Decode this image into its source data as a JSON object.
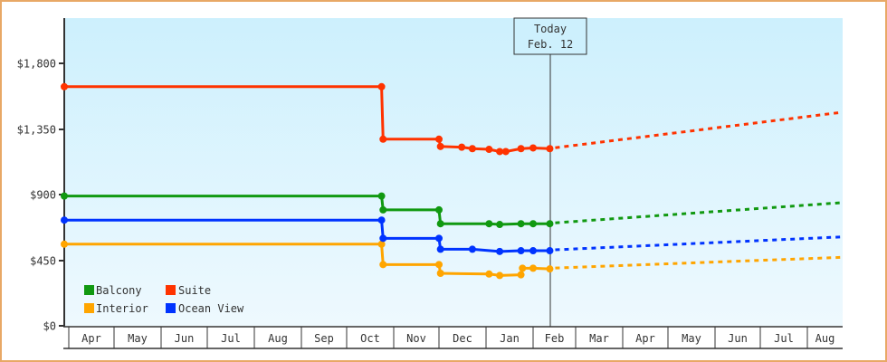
{
  "chart_data": {
    "type": "line",
    "title": "",
    "xlabel": "",
    "ylabel": "",
    "ylim": [
      0,
      2100
    ],
    "y_ticks": [
      {
        "value": 0,
        "label": "$0"
      },
      {
        "value": 450,
        "label": "$450"
      },
      {
        "value": 900,
        "label": "$900"
      },
      {
        "value": 1350,
        "label": "$1,350"
      },
      {
        "value": 1800,
        "label": "$1,800"
      }
    ],
    "x_ticks": [
      "Apr",
      "May",
      "Jun",
      "Jul",
      "Aug",
      "Sep",
      "Oct",
      "Nov",
      "Dec",
      "Jan",
      "Feb",
      "Mar",
      "Apr",
      "May",
      "Jun",
      "Jul",
      "Aug"
    ],
    "grid": false,
    "legend_position": "bottom-left inside plot",
    "today_marker": {
      "line1": "Today",
      "line2": "Feb. 12"
    },
    "series": [
      {
        "name": "Balcony",
        "color": "#119911",
        "historical": [
          {
            "date": "Apr 1",
            "price": 890
          },
          {
            "date": "Oct 24",
            "price": 890
          },
          {
            "date": "Oct 25",
            "price": 795
          },
          {
            "date": "Dec 1",
            "price": 795
          },
          {
            "date": "Dec 2",
            "price": 700
          },
          {
            "date": "Jan 3",
            "price": 700
          },
          {
            "date": "Jan 10",
            "price": 695
          },
          {
            "date": "Jan 24",
            "price": 700
          },
          {
            "date": "Feb 1",
            "price": 700
          },
          {
            "date": "Feb 12",
            "price": 700
          }
        ],
        "forecast": [
          {
            "date": "Feb 12",
            "price": 700
          },
          {
            "date": "Aug 31",
            "price": 845
          }
        ]
      },
      {
        "name": "Suite",
        "color": "#ff3300",
        "historical": [
          {
            "date": "Apr 1",
            "price": 1640
          },
          {
            "date": "Oct 24",
            "price": 1640
          },
          {
            "date": "Oct 25",
            "price": 1280
          },
          {
            "date": "Dec 1",
            "price": 1280
          },
          {
            "date": "Dec 2",
            "price": 1230
          },
          {
            "date": "Dec 16",
            "price": 1225
          },
          {
            "date": "Dec 23",
            "price": 1215
          },
          {
            "date": "Jan 3",
            "price": 1210
          },
          {
            "date": "Jan 10",
            "price": 1195
          },
          {
            "date": "Jan 14",
            "price": 1195
          },
          {
            "date": "Jan 24",
            "price": 1215
          },
          {
            "date": "Feb 1",
            "price": 1220
          },
          {
            "date": "Feb 12",
            "price": 1215
          }
        ],
        "forecast": [
          {
            "date": "Feb 12",
            "price": 1215
          },
          {
            "date": "Aug 31",
            "price": 1465
          }
        ]
      },
      {
        "name": "Interior",
        "color": "#ffa500",
        "historical": [
          {
            "date": "Apr 1",
            "price": 560
          },
          {
            "date": "Oct 24",
            "price": 560
          },
          {
            "date": "Oct 25",
            "price": 420
          },
          {
            "date": "Dec 1",
            "price": 420
          },
          {
            "date": "Dec 2",
            "price": 360
          },
          {
            "date": "Jan 3",
            "price": 355
          },
          {
            "date": "Jan 10",
            "price": 345
          },
          {
            "date": "Jan 24",
            "price": 350
          },
          {
            "date": "Jan 25",
            "price": 395
          },
          {
            "date": "Feb 1",
            "price": 395
          },
          {
            "date": "Feb 12",
            "price": 390
          }
        ],
        "forecast": [
          {
            "date": "Feb 12",
            "price": 390
          },
          {
            "date": "Aug 31",
            "price": 470
          }
        ]
      },
      {
        "name": "Ocean View",
        "color": "#0033ff",
        "historical": [
          {
            "date": "Apr 1",
            "price": 725
          },
          {
            "date": "Oct 24",
            "price": 725
          },
          {
            "date": "Oct 25",
            "price": 600
          },
          {
            "date": "Dec 1",
            "price": 600
          },
          {
            "date": "Dec 2",
            "price": 525
          },
          {
            "date": "Dec 23",
            "price": 525
          },
          {
            "date": "Jan 10",
            "price": 510
          },
          {
            "date": "Jan 24",
            "price": 515
          },
          {
            "date": "Feb 1",
            "price": 515
          },
          {
            "date": "Feb 12",
            "price": 515
          }
        ],
        "forecast": [
          {
            "date": "Feb 12",
            "price": 515
          },
          {
            "date": "Aug 31",
            "price": 610
          }
        ]
      }
    ]
  },
  "legend": {
    "items": [
      {
        "label": "Balcony",
        "color": "#119911"
      },
      {
        "label": "Suite",
        "color": "#ff3300"
      },
      {
        "label": "Interior",
        "color": "#ffa500"
      },
      {
        "label": "Ocean View",
        "color": "#0033ff"
      }
    ]
  },
  "today_box": {
    "line1": "Today",
    "line2": "Feb. 12"
  },
  "axis": {
    "y_labels": [
      "$1,800",
      "$1,350",
      "$900",
      "$450",
      "$0"
    ],
    "x_labels": [
      "Apr",
      "May",
      "Jun",
      "Jul",
      "Aug",
      "Sep",
      "Oct",
      "Nov",
      "Dec",
      "Jan",
      "Feb",
      "Mar",
      "Apr",
      "May",
      "Jun",
      "Jul",
      "Aug"
    ]
  }
}
